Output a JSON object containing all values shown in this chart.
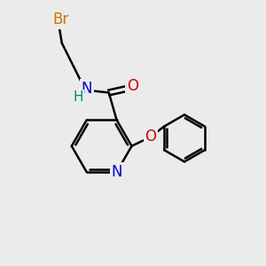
{
  "bg_color": "#ebebeb",
  "bond_color": "#000000",
  "bond_width": 1.8,
  "atom_colors": {
    "Br": "#cc7700",
    "N": "#0000cc",
    "O": "#cc0000",
    "C": "#000000",
    "H": "#008888"
  },
  "font_size": 12,
  "fig_size": [
    3.0,
    3.0
  ],
  "dpi": 100,
  "xlim": [
    0,
    10
  ],
  "ylim": [
    0,
    10
  ]
}
